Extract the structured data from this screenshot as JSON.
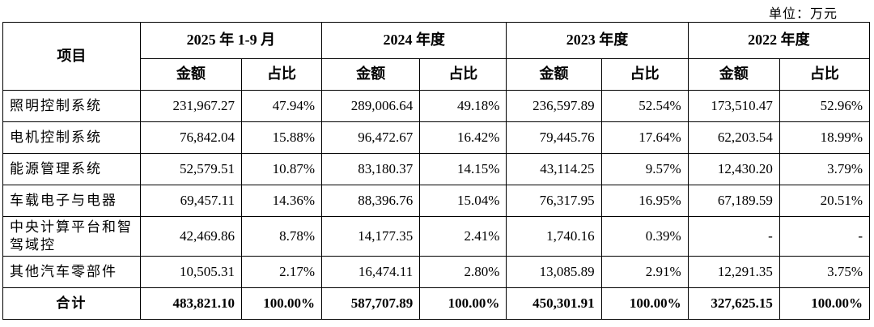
{
  "unit_label": "单位：万元",
  "table": {
    "item_header": "项目",
    "amount_header": "金额",
    "ratio_header": "占比",
    "periods": [
      {
        "label": "2025 年 1-9 月"
      },
      {
        "label": "2024 年度"
      },
      {
        "label": "2023 年度"
      },
      {
        "label": "2022 年度"
      }
    ],
    "rows": [
      {
        "item": "照明控制系统",
        "values": [
          "231,967.27",
          "47.94%",
          "289,006.64",
          "49.18%",
          "236,597.89",
          "52.54%",
          "173,510.47",
          "52.96%"
        ]
      },
      {
        "item": "电机控制系统",
        "values": [
          "76,842.04",
          "15.88%",
          "96,472.67",
          "16.42%",
          "79,445.76",
          "17.64%",
          "62,203.54",
          "18.99%"
        ]
      },
      {
        "item": "能源管理系统",
        "values": [
          "52,579.51",
          "10.87%",
          "83,180.37",
          "14.15%",
          "43,114.25",
          "9.57%",
          "12,430.20",
          "3.79%"
        ]
      },
      {
        "item": "车载电子与电器",
        "values": [
          "69,457.11",
          "14.36%",
          "88,396.76",
          "15.04%",
          "76,317.95",
          "16.95%",
          "67,189.59",
          "20.51%"
        ]
      },
      {
        "item": "中央计算平台和智驾域控",
        "values": [
          "42,469.86",
          "8.78%",
          "14,177.35",
          "2.41%",
          "1,740.16",
          "0.39%",
          "-",
          "-"
        ]
      },
      {
        "item": "其他汽车零部件",
        "values": [
          "10,505.31",
          "2.17%",
          "16,474.11",
          "2.80%",
          "13,085.89",
          "2.91%",
          "12,291.35",
          "3.75%"
        ]
      }
    ],
    "total_row": {
      "item": "合计",
      "values": [
        "483,821.10",
        "100.00%",
        "587,707.89",
        "100.00%",
        "450,301.91",
        "100.00%",
        "327,625.15",
        "100.00%"
      ]
    }
  }
}
